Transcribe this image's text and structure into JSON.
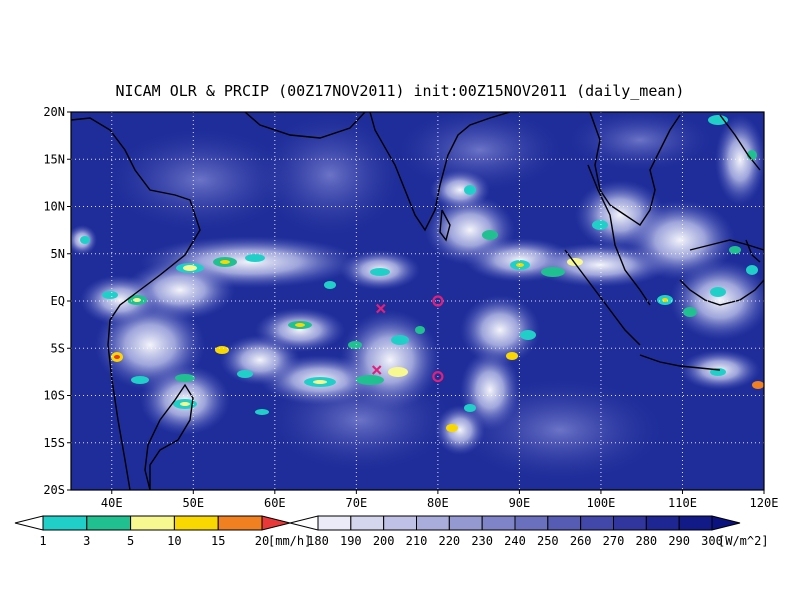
{
  "title": "NICAM OLR & PRCIP (00Z17NOV2011) init:00Z15NOV2011 (daily_mean)",
  "map": {
    "lon_range": [
      35,
      120
    ],
    "lat_range": [
      -20,
      20
    ],
    "lat_ticks": [
      {
        "value": 20,
        "label": "20N"
      },
      {
        "value": 15,
        "label": "15N"
      },
      {
        "value": 10,
        "label": "10N"
      },
      {
        "value": 5,
        "label": "5N"
      },
      {
        "value": 0,
        "label": "EQ"
      },
      {
        "value": -5,
        "label": "5S"
      },
      {
        "value": -10,
        "label": "10S"
      },
      {
        "value": -15,
        "label": "15S"
      },
      {
        "value": -20,
        "label": "20S"
      }
    ],
    "lon_ticks": [
      {
        "value": 40,
        "label": "40E"
      },
      {
        "value": 50,
        "label": "50E"
      },
      {
        "value": 60,
        "label": "60E"
      },
      {
        "value": 70,
        "label": "70E"
      },
      {
        "value": 80,
        "label": "80E"
      },
      {
        "value": 90,
        "label": "90E"
      },
      {
        "value": 100,
        "label": "100E"
      },
      {
        "value": 110,
        "label": "110E"
      },
      {
        "value": 120,
        "label": "120E"
      }
    ],
    "grid": "dotted",
    "ocean_color": "#1e2d9a",
    "markers": [
      {
        "symbol": "x",
        "lon": 73,
        "lat": -0.8,
        "color": "#e0207a"
      },
      {
        "symbol": "x",
        "lon": 72.5,
        "lat": -7.3,
        "color": "#e0207a"
      },
      {
        "symbol": "o",
        "lon": 80,
        "lat": 0,
        "color": "#e0207a"
      },
      {
        "symbol": "o",
        "lon": 80,
        "lat": -8,
        "color": "#e0207a"
      }
    ]
  },
  "precip_colorbar": {
    "unit": "[mm/h]",
    "levels": [
      "1",
      "3",
      "5",
      "10",
      "15",
      "20"
    ],
    "colors": [
      "#ffffff",
      "#20d0c8",
      "#20c090",
      "#f8f890",
      "#f8d800",
      "#f08020",
      "#e83838"
    ]
  },
  "olr_colorbar": {
    "unit": "[W/m^2]",
    "levels": [
      "180",
      "190",
      "200",
      "210",
      "220",
      "230",
      "240",
      "250",
      "260",
      "270",
      "280",
      "290",
      "300"
    ],
    "colors": [
      "#ffffff",
      "#eaebf6",
      "#d4d6ee",
      "#bfc1e6",
      "#a9addc",
      "#9499d2",
      "#7f84c8",
      "#6b70be",
      "#565cb4",
      "#4248aa",
      "#30369e",
      "#1e2694",
      "#121a88",
      "#0a1280"
    ]
  }
}
